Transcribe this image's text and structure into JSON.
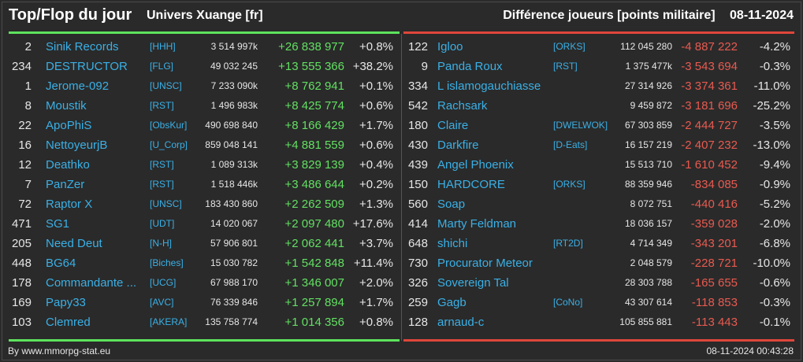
{
  "header": {
    "title": "Top/Flop du jour",
    "universe": "Univers Xuange [fr]",
    "metric": "Différence joueurs [points militaire]",
    "date": "08-11-2024"
  },
  "colors": {
    "positive": "#62e062",
    "negative": "#e85a50",
    "name": "#3ab0e6",
    "top_bar": "#5de35d",
    "flop_bar": "#e0463c"
  },
  "top": [
    {
      "rank": "2",
      "name": "Sinik Records",
      "tag": "[HHH]",
      "points": "3 514 997k",
      "diff": "+26 838 977",
      "pct": "+0.8%"
    },
    {
      "rank": "234",
      "name": "DESTRUCTOR",
      "tag": "[FLG]",
      "points": "49 032 245",
      "diff": "+13 555 366",
      "pct": "+38.2%"
    },
    {
      "rank": "1",
      "name": "Jerome-092",
      "tag": "[UNSC]",
      "points": "7 233 090k",
      "diff": "+8 762 941",
      "pct": "+0.1%"
    },
    {
      "rank": "8",
      "name": "Moustik",
      "tag": "[RST]",
      "points": "1 496 983k",
      "diff": "+8 425 774",
      "pct": "+0.6%"
    },
    {
      "rank": "22",
      "name": "ApoPhiS",
      "tag": "[ObsKur]",
      "points": "490 698 840",
      "diff": "+8 166 429",
      "pct": "+1.7%"
    },
    {
      "rank": "16",
      "name": "NettoyeurjB",
      "tag": "[U_Corp]",
      "points": "859 048 141",
      "diff": "+4 881 559",
      "pct": "+0.6%"
    },
    {
      "rank": "12",
      "name": "Deathko",
      "tag": "[RST]",
      "points": "1 089 313k",
      "diff": "+3 829 139",
      "pct": "+0.4%"
    },
    {
      "rank": "7",
      "name": "PanZer",
      "tag": "[RST]",
      "points": "1 518 446k",
      "diff": "+3 486 644",
      "pct": "+0.2%"
    },
    {
      "rank": "72",
      "name": "Raptor X",
      "tag": "[UNSC]",
      "points": "183 430 860",
      "diff": "+2 262 509",
      "pct": "+1.3%"
    },
    {
      "rank": "471",
      "name": "SG1",
      "tag": "[UDT]",
      "points": "14 020 067",
      "diff": "+2 097 480",
      "pct": "+17.6%"
    },
    {
      "rank": "205",
      "name": "Need Deut",
      "tag": "[N-H]",
      "points": "57 906 801",
      "diff": "+2 062 441",
      "pct": "+3.7%"
    },
    {
      "rank": "448",
      "name": "BG64",
      "tag": "[Biches]",
      "points": "15 030 782",
      "diff": "+1 542 848",
      "pct": "+11.4%"
    },
    {
      "rank": "178",
      "name": "Commandante ...",
      "tag": "[UCG]",
      "points": "67 988 170",
      "diff": "+1 346 007",
      "pct": "+2.0%"
    },
    {
      "rank": "169",
      "name": "Papy33",
      "tag": "[AVC]",
      "points": "76 339 846",
      "diff": "+1 257 894",
      "pct": "+1.7%"
    },
    {
      "rank": "103",
      "name": "Clemred",
      "tag": "[AKERA]",
      "points": "135 758 774",
      "diff": "+1 014 356",
      "pct": "+0.8%"
    }
  ],
  "flop": [
    {
      "rank": "122",
      "name": "Igloo",
      "tag": "[ORKS]",
      "points": "112 045 280",
      "diff": "-4 887 222",
      "pct": "-4.2%"
    },
    {
      "rank": "9",
      "name": "Panda Roux",
      "tag": "[RST]",
      "points": "1 375 477k",
      "diff": "-3 543 694",
      "pct": "-0.3%"
    },
    {
      "rank": "334",
      "name": "L islamogauchiasse",
      "tag": "",
      "points": "27 314 926",
      "diff": "-3 374 361",
      "pct": "-11.0%"
    },
    {
      "rank": "542",
      "name": "Rachsark",
      "tag": "",
      "points": "9 459 872",
      "diff": "-3 181 696",
      "pct": "-25.2%"
    },
    {
      "rank": "180",
      "name": "Claire",
      "tag": "[DWELWOK]",
      "points": "67 303 859",
      "diff": "-2 444 727",
      "pct": "-3.5%"
    },
    {
      "rank": "430",
      "name": "Darkfire",
      "tag": "[D-Eats]",
      "points": "16 157 219",
      "diff": "-2 407 232",
      "pct": "-13.0%"
    },
    {
      "rank": "439",
      "name": "Angel Phoenix",
      "tag": "",
      "points": "15 513 710",
      "diff": "-1 610 452",
      "pct": "-9.4%"
    },
    {
      "rank": "150",
      "name": "HARDCORE",
      "tag": "[ORKS]",
      "points": "88 359 946",
      "diff": "-834 085",
      "pct": "-0.9%"
    },
    {
      "rank": "560",
      "name": "Soap",
      "tag": "",
      "points": "8 072 751",
      "diff": "-440 416",
      "pct": "-5.2%"
    },
    {
      "rank": "414",
      "name": "Marty Feldman",
      "tag": "",
      "points": "18 036 157",
      "diff": "-359 028",
      "pct": "-2.0%"
    },
    {
      "rank": "648",
      "name": "shichi",
      "tag": "[RT2D]",
      "points": "4 714 349",
      "diff": "-343 201",
      "pct": "-6.8%"
    },
    {
      "rank": "730",
      "name": "Procurator Meteor",
      "tag": "",
      "points": "2 048 579",
      "diff": "-228 721",
      "pct": "-10.0%"
    },
    {
      "rank": "326",
      "name": "Sovereign Tal",
      "tag": "",
      "points": "28 303 788",
      "diff": "-165 655",
      "pct": "-0.6%"
    },
    {
      "rank": "259",
      "name": "Gagb",
      "tag": "[CoNo]",
      "points": "43 307 614",
      "diff": "-118 853",
      "pct": "-0.3%"
    },
    {
      "rank": "128",
      "name": "arnaud-c",
      "tag": "",
      "points": "105 855 881",
      "diff": "-113 443",
      "pct": "-0.1%"
    }
  ],
  "footer": {
    "credit": "By www.mmorpg-stat.eu",
    "timestamp": "08-11-2024 00:43:28"
  }
}
